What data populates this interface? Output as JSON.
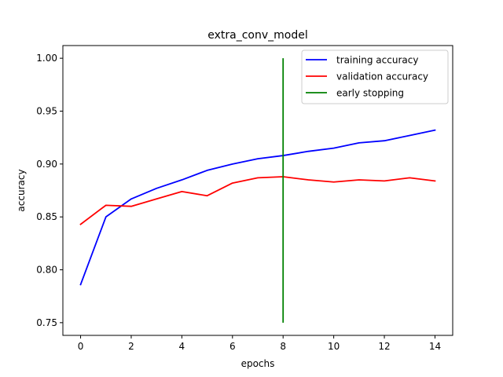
{
  "chart_data": {
    "type": "line",
    "title": "extra_conv_model",
    "xlabel": "epochs",
    "ylabel": "accuracy",
    "xlim": [
      -0.7,
      14.7
    ],
    "ylim": [
      0.738,
      1.012
    ],
    "x_ticks": [
      0,
      2,
      4,
      6,
      8,
      10,
      12,
      14
    ],
    "y_ticks": [
      0.75,
      0.8,
      0.85,
      0.9,
      0.95,
      1.0
    ],
    "y_tick_labels": [
      "0.75",
      "0.80",
      "0.85",
      "0.90",
      "0.95",
      "1.00"
    ],
    "grid": false,
    "legend_position": "top-right",
    "x": [
      0,
      1,
      2,
      3,
      4,
      5,
      6,
      7,
      8,
      9,
      10,
      11,
      12,
      13,
      14
    ],
    "series": [
      {
        "name": "training accuracy",
        "color": "#0000ff",
        "values": [
          0.786,
          0.85,
          0.867,
          0.877,
          0.885,
          0.894,
          0.9,
          0.905,
          0.908,
          0.912,
          0.915,
          0.92,
          0.922,
          0.927,
          0.932
        ]
      },
      {
        "name": "validation accuracy",
        "color": "#ff0000",
        "values": [
          0.843,
          0.861,
          0.86,
          0.867,
          0.874,
          0.87,
          0.882,
          0.887,
          0.888,
          0.885,
          0.883,
          0.885,
          0.884,
          0.887,
          0.884
        ]
      }
    ],
    "vertical_marker": {
      "name": "early stopping",
      "color": "#008000",
      "x": 8,
      "y_range": [
        0.75,
        1.0
      ]
    }
  }
}
